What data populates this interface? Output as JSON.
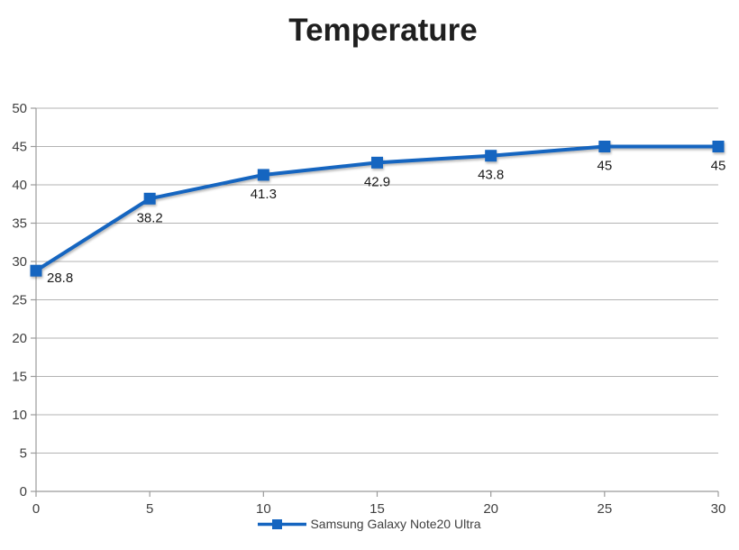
{
  "title": "Temperature",
  "colors": {
    "series": "#1565C0",
    "gridline": "#B3B3B3",
    "axis": "#9B9B9B",
    "tick_label": "#3F3F3F",
    "data_label": "#1A1A1A",
    "title_text": "#1F1F1F",
    "legend_text": "#3F3F3F",
    "background": "#FFFFFF"
  },
  "legend": {
    "position": "bottom",
    "marker_icon": "line-with-square-marker-icon"
  },
  "chart_data": {
    "type": "line",
    "title": "Temperature",
    "x": [
      0,
      5,
      10,
      15,
      20,
      25,
      30
    ],
    "series": [
      {
        "name": "Samsung Galaxy Note20 Ultra",
        "color": "#1565C0",
        "marker": "square",
        "values": [
          28.8,
          38.2,
          41.3,
          42.9,
          43.8,
          45,
          45
        ],
        "data_labels": [
          "28.8",
          "38.2",
          "41.3",
          "42.9",
          "43.8",
          "45",
          "45"
        ]
      }
    ],
    "xlabel": "",
    "ylabel": "",
    "xlim": [
      0,
      30
    ],
    "ylim": [
      0,
      50
    ],
    "x_ticks": [
      0,
      5,
      10,
      15,
      20,
      25,
      30
    ],
    "y_ticks": [
      0,
      5,
      10,
      15,
      20,
      25,
      30,
      35,
      40,
      45,
      50
    ],
    "grid": "horizontal",
    "legend_position": "bottom"
  }
}
